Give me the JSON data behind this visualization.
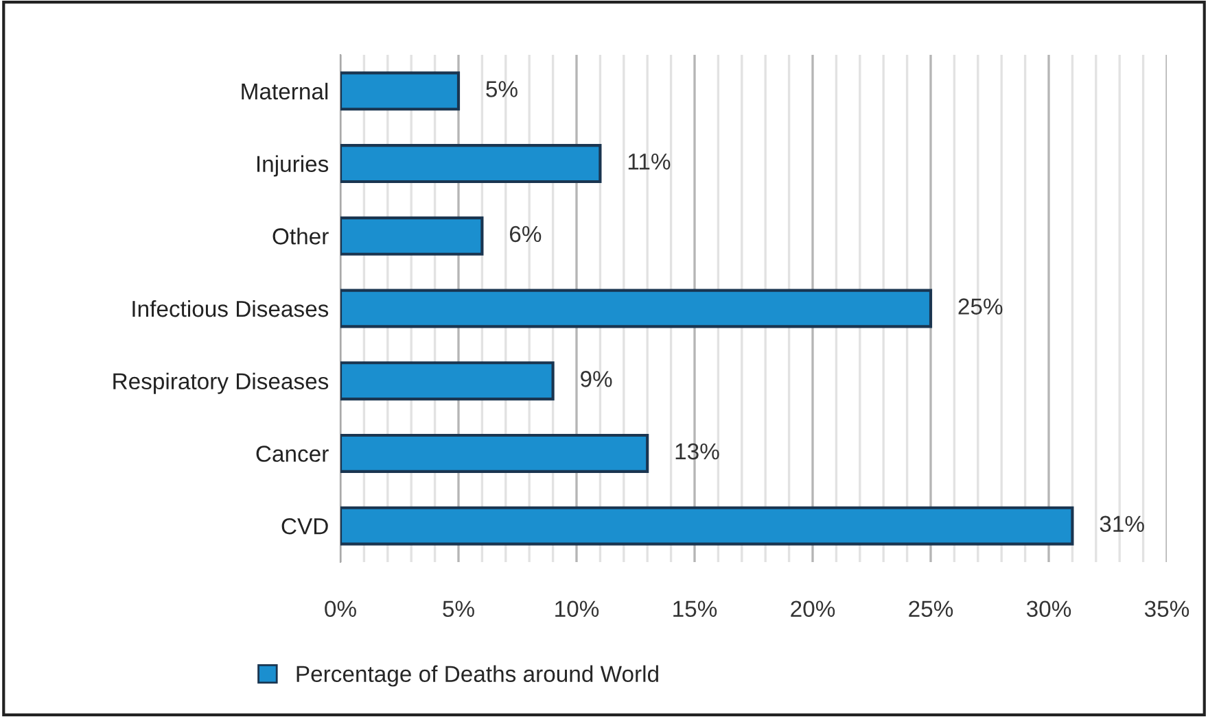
{
  "chart_data": {
    "type": "bar",
    "orientation": "horizontal",
    "categories": [
      "Maternal",
      "Injuries",
      "Other",
      "Infectious Diseases",
      "Respiratory Diseases",
      "Cancer",
      "CVD"
    ],
    "series": [
      {
        "name": "Percentage of Deaths around World",
        "color": "#1b8fcf",
        "values": [
          5,
          11,
          6,
          25,
          9,
          13,
          31
        ],
        "value_labels": [
          "5%",
          "11%",
          "6%",
          "25%",
          "9%",
          "13%",
          "31%"
        ]
      }
    ],
    "xlim": [
      0,
      35
    ],
    "xticks": [
      {
        "value": 0,
        "label": "0%"
      },
      {
        "value": 1,
        "label": null
      },
      {
        "value": 2,
        "label": null
      },
      {
        "value": 3,
        "label": null
      },
      {
        "value": 4,
        "label": null
      },
      {
        "value": 5,
        "label": "5%"
      },
      {
        "value": 6,
        "label": null
      },
      {
        "value": 7,
        "label": null
      },
      {
        "value": 8,
        "label": null
      },
      {
        "value": 9,
        "label": null
      },
      {
        "value": 10,
        "label": "10%"
      },
      {
        "value": 11,
        "label": null
      },
      {
        "value": 12,
        "label": null
      },
      {
        "value": 13,
        "label": null
      },
      {
        "value": 14,
        "label": null
      },
      {
        "value": 15,
        "label": "15%"
      },
      {
        "value": 16,
        "label": null
      },
      {
        "value": 17,
        "label": null
      },
      {
        "value": 18,
        "label": null
      },
      {
        "value": 19,
        "label": null
      },
      {
        "value": 20,
        "label": "20%"
      },
      {
        "value": 21,
        "label": null
      },
      {
        "value": 22,
        "label": null
      },
      {
        "value": 23,
        "label": null
      },
      {
        "value": 24,
        "label": null
      },
      {
        "value": 25,
        "label": "25%"
      },
      {
        "value": 26,
        "label": null
      },
      {
        "value": 27,
        "label": null
      },
      {
        "value": 28,
        "label": null
      },
      {
        "value": 29,
        "label": null
      },
      {
        "value": 30,
        "label": "30%"
      },
      {
        "value": 31,
        "label": null
      },
      {
        "value": 32,
        "label": null
      },
      {
        "value": 33,
        "label": null
      },
      {
        "value": 34,
        "label": null
      },
      {
        "value": 35,
        "label": "35%"
      }
    ],
    "grid": "x",
    "legend": "bottom"
  }
}
